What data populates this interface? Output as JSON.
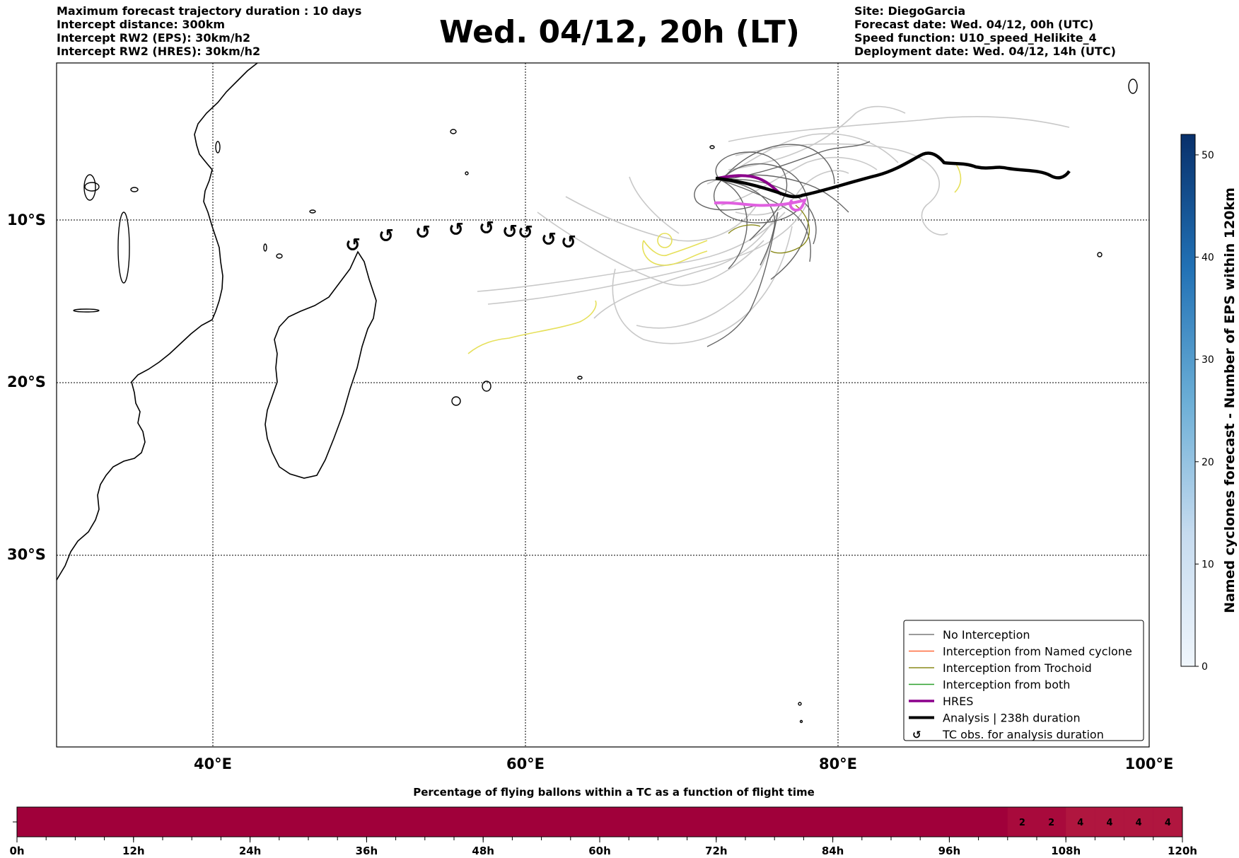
{
  "header_left": [
    "Maximum forecast trajectory duration : 10 days",
    "Intercept distance: 300km",
    "Intercept RW2 (EPS):  30km/h2",
    "Intercept RW2 (HRES): 30km/h2"
  ],
  "header_right": [
    "Site: DiegoGarcia",
    "Forecast date: Wed. 04/12, 00h (UTC)",
    "Speed function: U10_speed_Helikite_4",
    "Deployment date: Wed. 04/12, 14h (UTC)"
  ],
  "title": "Wed. 04/12, 20h (LT)",
  "map": {
    "lat_labels": [
      "10°S",
      "20°S",
      "30°S"
    ],
    "lon_labels": [
      "40°E",
      "60°E",
      "80°E",
      "100°E"
    ]
  },
  "colorbar": {
    "title": "Named cyclones forecast - Number of EPS within 120km",
    "ticks": [
      "0",
      "10",
      "20",
      "30",
      "40",
      "50"
    ]
  },
  "legend": {
    "items": [
      {
        "label": "No Interception",
        "color": "#7a7a7a",
        "style": "line"
      },
      {
        "label": "Interception from Named cyclone",
        "color": "#ff6a3d",
        "style": "line"
      },
      {
        "label": "Interception from Trochoid",
        "color": "#8a8a1a",
        "style": "line"
      },
      {
        "label": "Interception from both",
        "color": "#2ca02c",
        "style": "line"
      },
      {
        "label": "HRES",
        "color": "#8b008b",
        "style": "thick"
      },
      {
        "label": "Analysis | 238h duration",
        "color": "#000000",
        "style": "thicker"
      },
      {
        "label": "TC obs. for analysis duration",
        "color": "#000000",
        "style": "symbol"
      }
    ]
  },
  "tc_symbol": "↺",
  "bottom_bar": {
    "title": "Percentage of flying ballons within a TC as a function of flight time",
    "time_labels": [
      "0h",
      "12h",
      "24h",
      "36h",
      "48h",
      "60h",
      "72h",
      "84h",
      "96h",
      "108h",
      "120h"
    ],
    "values": [
      "2",
      "2",
      "4",
      "4",
      "4",
      "4"
    ],
    "base_color": "#a0003a",
    "light_color": "#b0163f"
  },
  "colors": {
    "land": "#000000",
    "eps_gray": "#646464",
    "eps_light": "#c8c8c8",
    "yellow": "#e6e05a",
    "hres": "#8b008b",
    "hres_pink": "#e060e0",
    "colorbar_top": "#08306b",
    "colorbar_bottom": "#f0f6fc"
  }
}
